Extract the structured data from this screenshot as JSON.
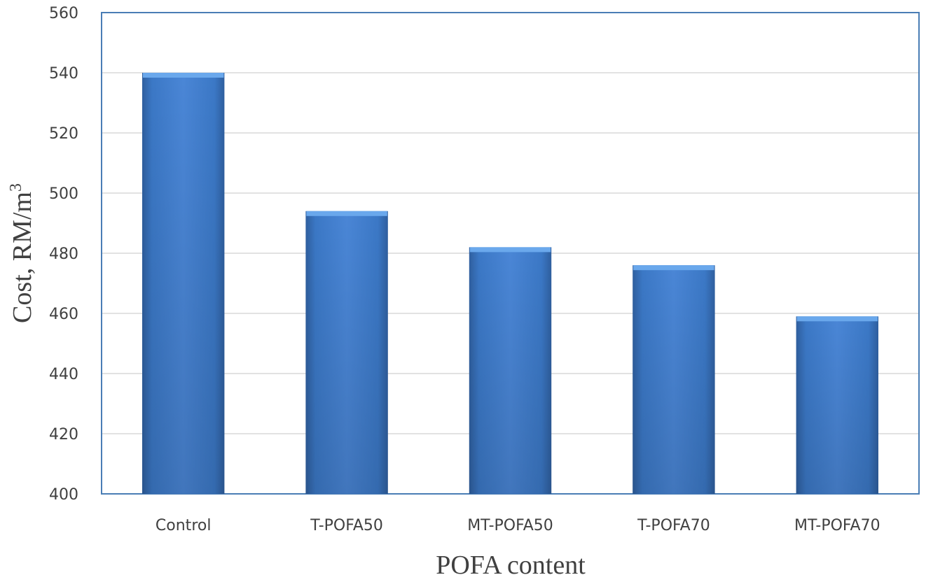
{
  "chart_data": {
    "type": "bar",
    "title": "",
    "xlabel": "POFA content",
    "ylabel": "Cost, RM/m",
    "ylabel_superscript": "3",
    "categories": [
      "Control",
      "T-POFA50",
      "MT-POFA50",
      "T-POFA70",
      "MT-POFA70"
    ],
    "values": [
      540,
      494,
      482,
      476,
      459
    ],
    "ylim": [
      400,
      560
    ],
    "yticks": [
      "400",
      "420",
      "440",
      "460",
      "480",
      "500",
      "520",
      "540",
      "560"
    ],
    "grid": true,
    "legend": "none",
    "colors": {
      "bar_light": "#4f8fdc",
      "bar_mid": "#3b78c6",
      "bar_dark": "#2f5f9f",
      "bar_top": "#6aa8ec",
      "plot_border": "#4a7db5",
      "grid": "#d9d9d9"
    }
  }
}
